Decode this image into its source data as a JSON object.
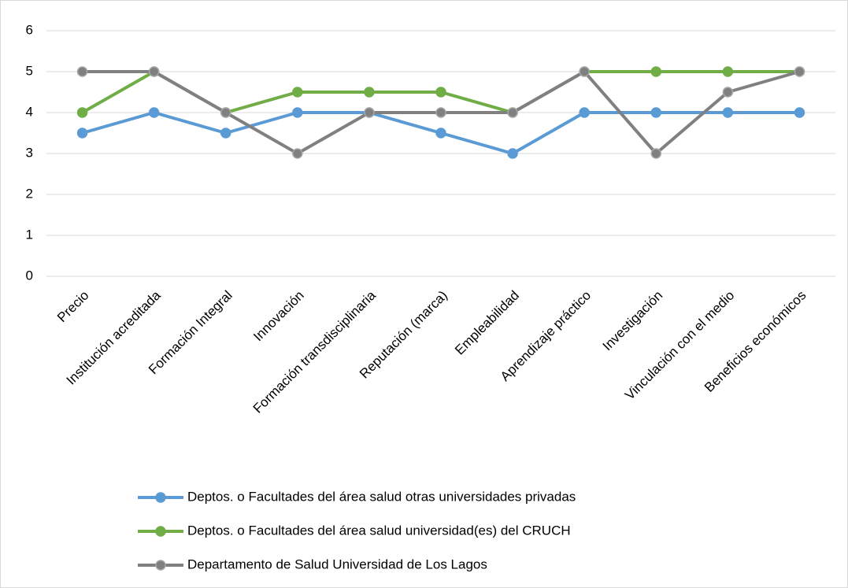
{
  "chart_data": {
    "type": "line",
    "categories": [
      "Precio",
      "Institución acreditada",
      "Formación Integral",
      "Innovación",
      "Formación transdisciplinaria",
      "Reputación (marca)",
      "Empleabilidad",
      "Aprendizaje práctico",
      "Investigación",
      "Vinculación con el medio",
      "Beneficios económicos"
    ],
    "series": [
      {
        "name": "Deptos. o Facultades del área salud otras universidades privadas",
        "color": "#5b9bd5",
        "values": [
          3.5,
          4,
          3.5,
          4,
          4,
          3.5,
          3,
          4,
          4,
          4,
          4
        ]
      },
      {
        "name": "Deptos. o Facultades del área salud  universidad(es) del CRUCH",
        "color": "#70ad47",
        "values": [
          4,
          5,
          4,
          4.5,
          4.5,
          4.5,
          4,
          5,
          5,
          5,
          5
        ]
      },
      {
        "name": "Departamento de Salud Universidad de Los Lagos",
        "color": "#808080",
        "values": [
          5,
          5,
          4,
          3,
          4,
          4,
          4,
          5,
          3,
          4.5,
          5
        ]
      }
    ],
    "ylim": [
      0,
      6
    ],
    "yticks": [
      0,
      1,
      2,
      3,
      4,
      5,
      6
    ],
    "grid": true,
    "legend": "bottom"
  }
}
